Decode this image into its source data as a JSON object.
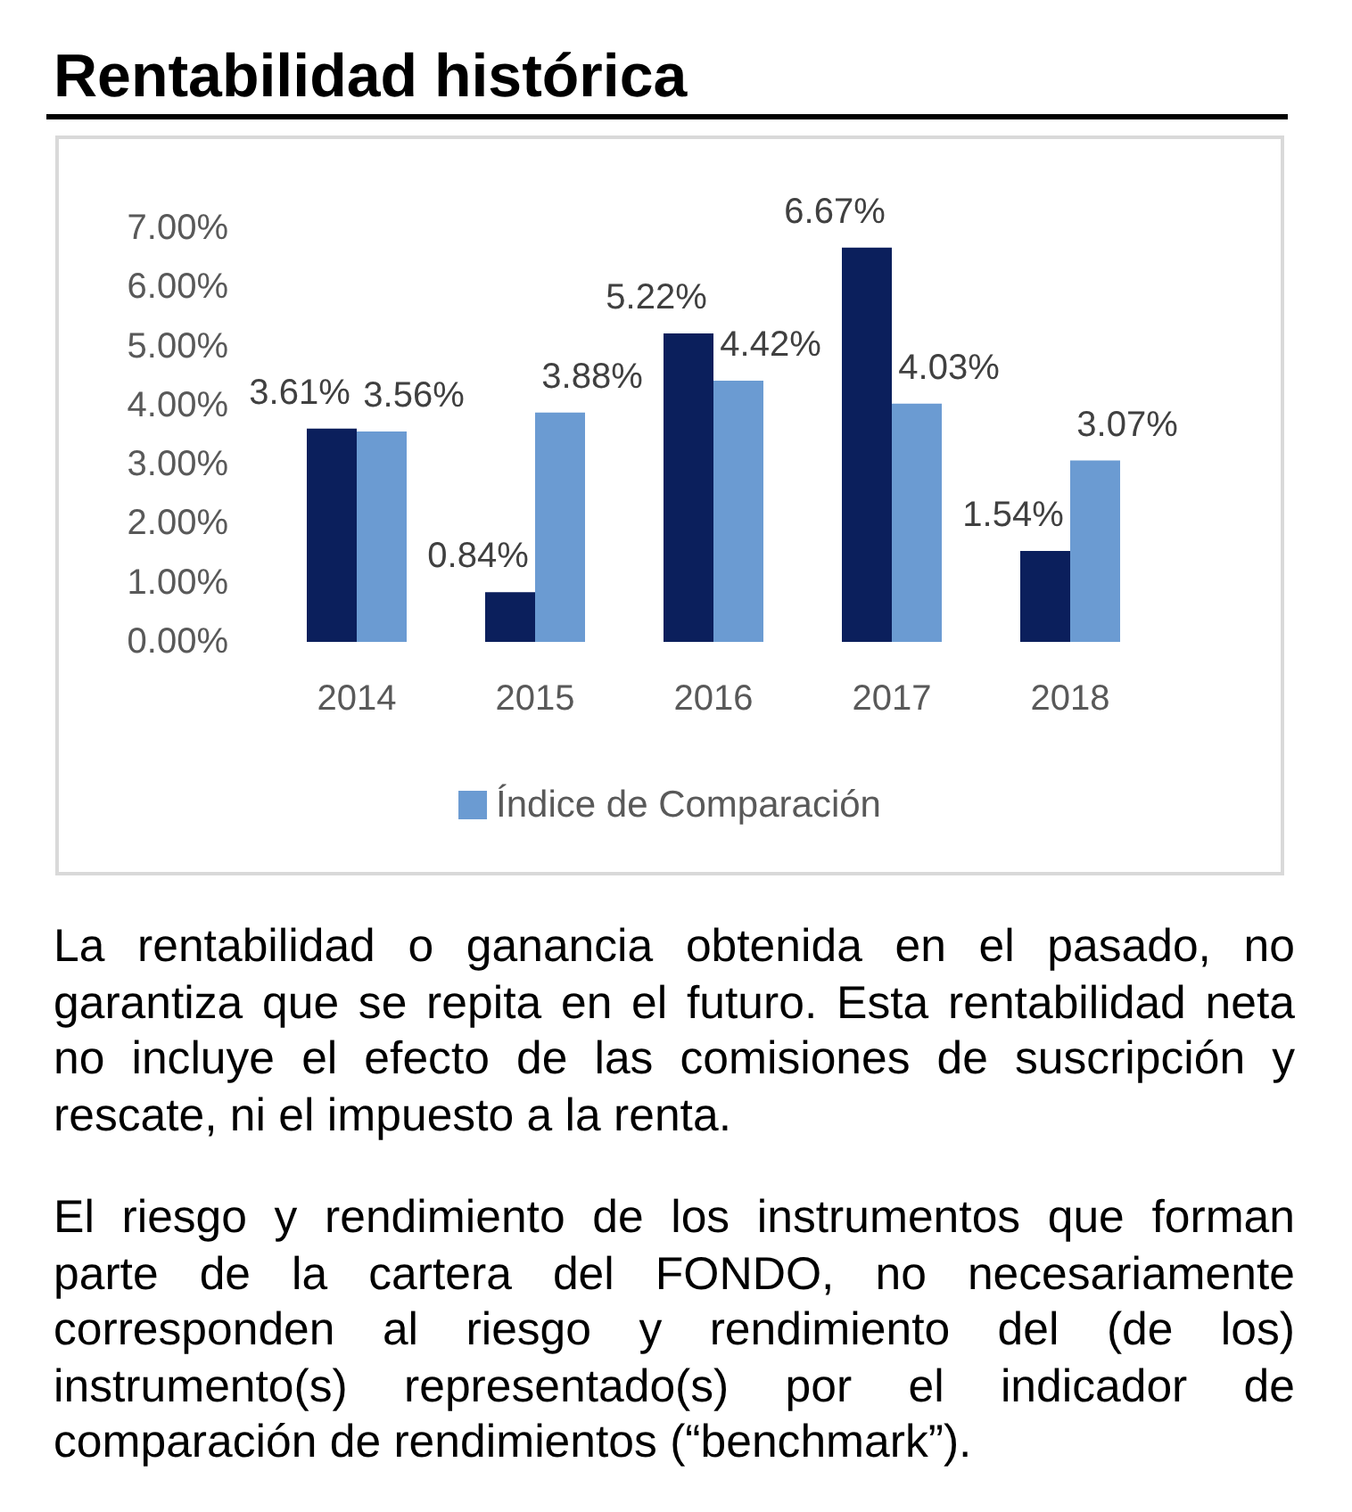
{
  "chart_data": {
    "type": "bar",
    "title": "Rentabilidad histórica",
    "categories": [
      "2014",
      "2015",
      "2016",
      "2017",
      "2018"
    ],
    "series": [
      {
        "color": "#0b1f5c",
        "values": [
          3.61,
          0.84,
          5.22,
          6.67,
          1.54
        ],
        "value_labels": [
          "3.61%",
          "0.84%",
          "5.22%",
          "6.67%",
          "1.54%"
        ]
      },
      {
        "name": "Índice de Comparación",
        "color": "#6b9bd2",
        "values": [
          3.56,
          3.88,
          4.42,
          4.03,
          3.07
        ],
        "value_labels": [
          "3.56%",
          "3.88%",
          "4.42%",
          "4.03%",
          "3.07%"
        ]
      }
    ],
    "ylim": [
      0,
      7
    ],
    "yticks": [
      {
        "value": 0,
        "label": "0.00%"
      },
      {
        "value": 1,
        "label": "1.00%"
      },
      {
        "value": 2,
        "label": "2.00%"
      },
      {
        "value": 3,
        "label": "3.00%"
      },
      {
        "value": 4,
        "label": "4.00%"
      },
      {
        "value": 5,
        "label": "5.00%"
      },
      {
        "value": 6,
        "label": "6.00%"
      },
      {
        "value": 7,
        "label": "7.00%"
      }
    ],
    "grid": false,
    "legend": "bottom",
    "annotations": [
      "La rentabilidad o ganancia obtenida en el pasado, no garantiza que se repita en el futuro. Esta rentabilidad neta no incluye el efecto de las comisiones de suscripción y rescate, ni el impuesto a la renta.",
      "El riesgo y rendimiento de los instrumentos que forman parte de la cartera del FONDO, no necesariamente corresponden al riesgo y rendimiento del (de los) instrumento(s) representado(s) por el indicador de comparación de rendimientos (“benchmark”)."
    ]
  }
}
